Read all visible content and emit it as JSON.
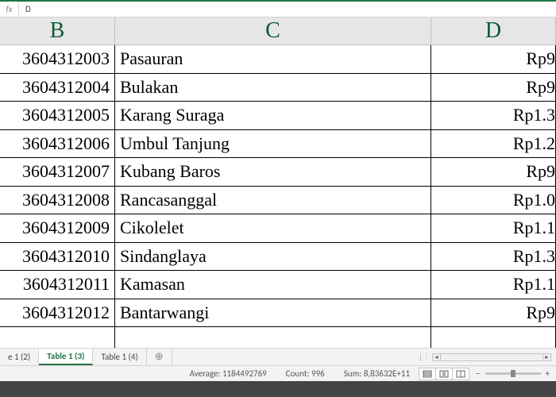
{
  "formula_bar": {
    "fx": "fx",
    "value": "D"
  },
  "columns": {
    "b": "B",
    "c": "C",
    "d": "D"
  },
  "rows": [
    {
      "b": "3604312003",
      "c": "Pasauran",
      "d": "Rp9"
    },
    {
      "b": "3604312004",
      "c": "Bulakan",
      "d": "Rp9"
    },
    {
      "b": "3604312005",
      "c": "Karang  Suraga",
      "d": "Rp1.3"
    },
    {
      "b": "3604312006",
      "c": "Umbul Tanjung",
      "d": "Rp1.2"
    },
    {
      "b": "3604312007",
      "c": "Kubang  Baros",
      "d": "Rp9"
    },
    {
      "b": "3604312008",
      "c": "Rancasanggal",
      "d": "Rp1.0"
    },
    {
      "b": "3604312009",
      "c": "Cikolelet",
      "d": "Rp1.1"
    },
    {
      "b": "3604312010",
      "c": "Sindanglaya",
      "d": "Rp1.3"
    },
    {
      "b": "3604312011",
      "c": "Kamasan",
      "d": "Rp1.1"
    },
    {
      "b": "3604312012",
      "c": "Bantarwangi",
      "d": "Rp9"
    },
    {
      "b": "",
      "c": "",
      "d": ""
    }
  ],
  "tabs": {
    "t1": "e 1 (2)",
    "t2": "Table 1 (3)",
    "t3": "Table 1 (4)",
    "add": "⊕"
  },
  "status": {
    "average_label": "Average:",
    "average_value": "1184492769",
    "count_label": "Count:",
    "count_value": "996",
    "sum_label": "Sum:",
    "sum_value": "8,83632E+11",
    "minus": "−",
    "plus": "+"
  }
}
